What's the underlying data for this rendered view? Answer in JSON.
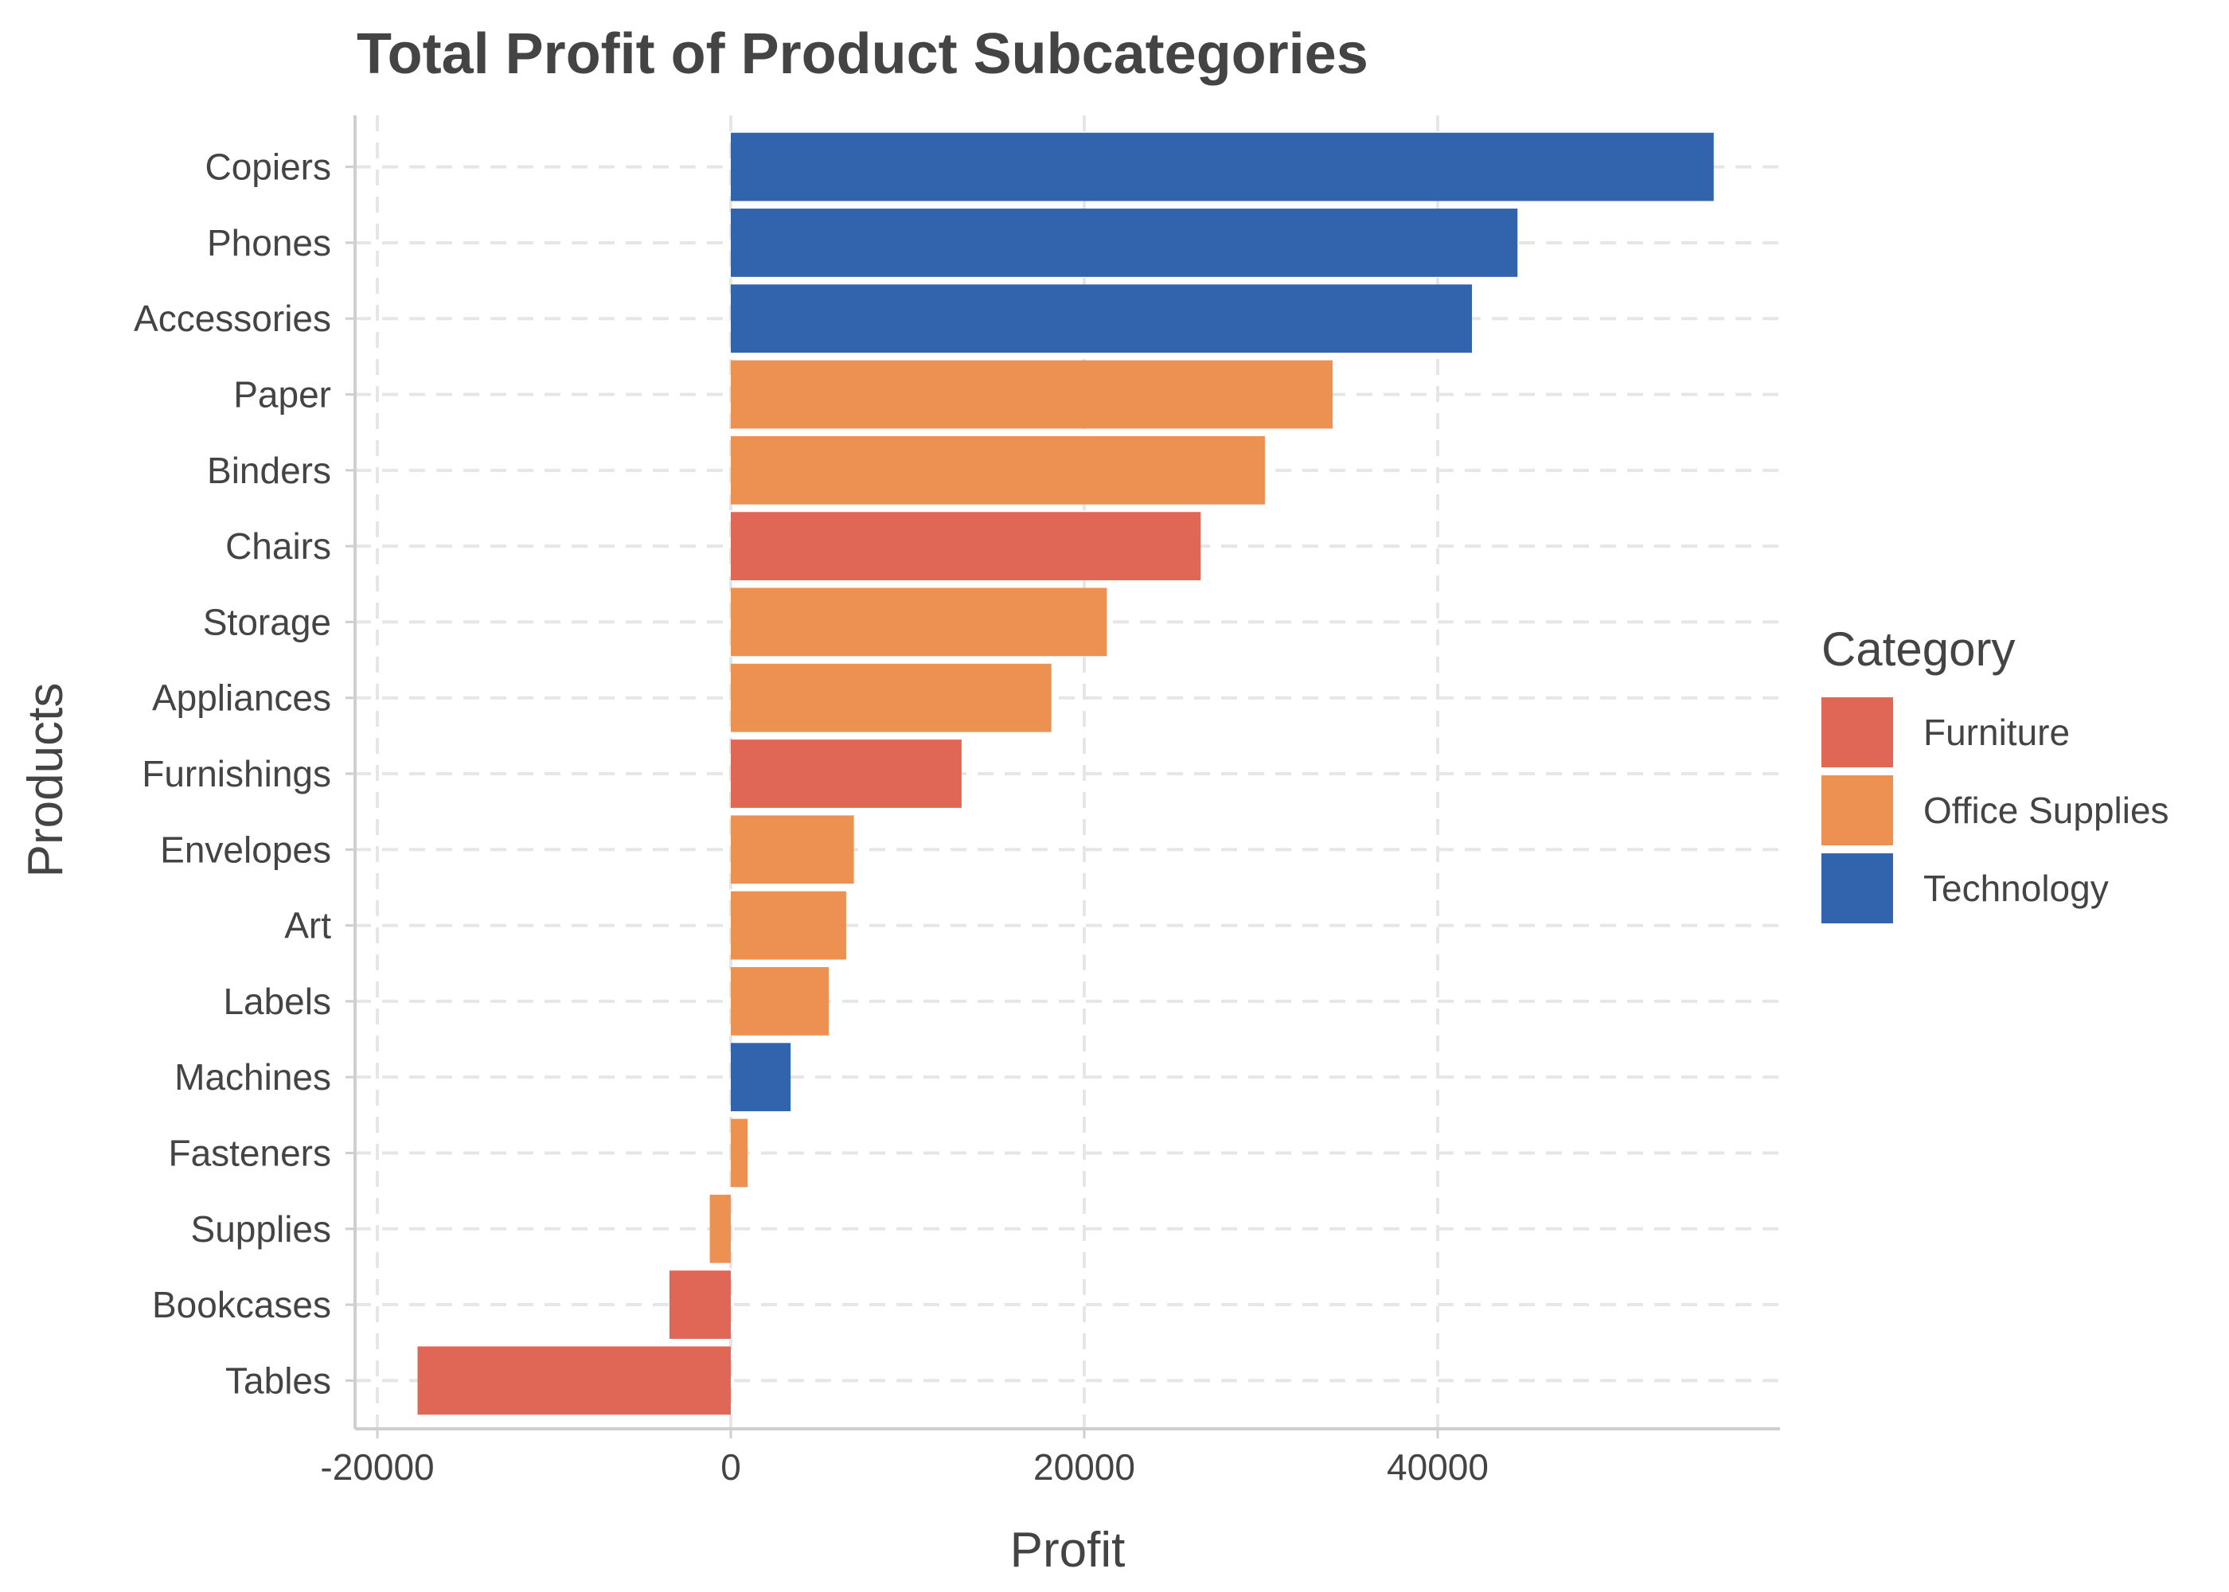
{
  "chart_data": {
    "type": "bar",
    "orientation": "horizontal",
    "title": "Total Profit of Product Subcategories",
    "xlabel": "Profit",
    "ylabel": "Products",
    "xlim": [
      -20000,
      58000
    ],
    "x_ticks": [
      -20000,
      0,
      20000,
      40000
    ],
    "x_tick_labels": [
      "-20000",
      "0",
      "20000",
      "40000"
    ],
    "grid": true,
    "legend": {
      "title": "Category",
      "placement": "right",
      "items": [
        {
          "name": "Furniture",
          "color": "#e06656"
        },
        {
          "name": "Office Supplies",
          "color": "#ec9152"
        },
        {
          "name": "Technology",
          "color": "#3263ad"
        }
      ]
    },
    "categories": [
      "Copiers",
      "Phones",
      "Accessories",
      "Paper",
      "Binders",
      "Chairs",
      "Storage",
      "Appliances",
      "Furnishings",
      "Envelopes",
      "Art",
      "Labels",
      "Machines",
      "Fasteners",
      "Supplies",
      "Bookcases",
      "Tables"
    ],
    "values": [
      55618,
      44516,
      41937,
      34054,
      30222,
      26590,
      21279,
      18138,
      13059,
      6964,
      6528,
      5546,
      3385,
      950,
      -1189,
      -3473,
      -17725
    ],
    "bar_category": [
      "Technology",
      "Technology",
      "Technology",
      "Office Supplies",
      "Office Supplies",
      "Furniture",
      "Office Supplies",
      "Office Supplies",
      "Furniture",
      "Office Supplies",
      "Office Supplies",
      "Office Supplies",
      "Technology",
      "Office Supplies",
      "Office Supplies",
      "Furniture",
      "Furniture"
    ]
  }
}
